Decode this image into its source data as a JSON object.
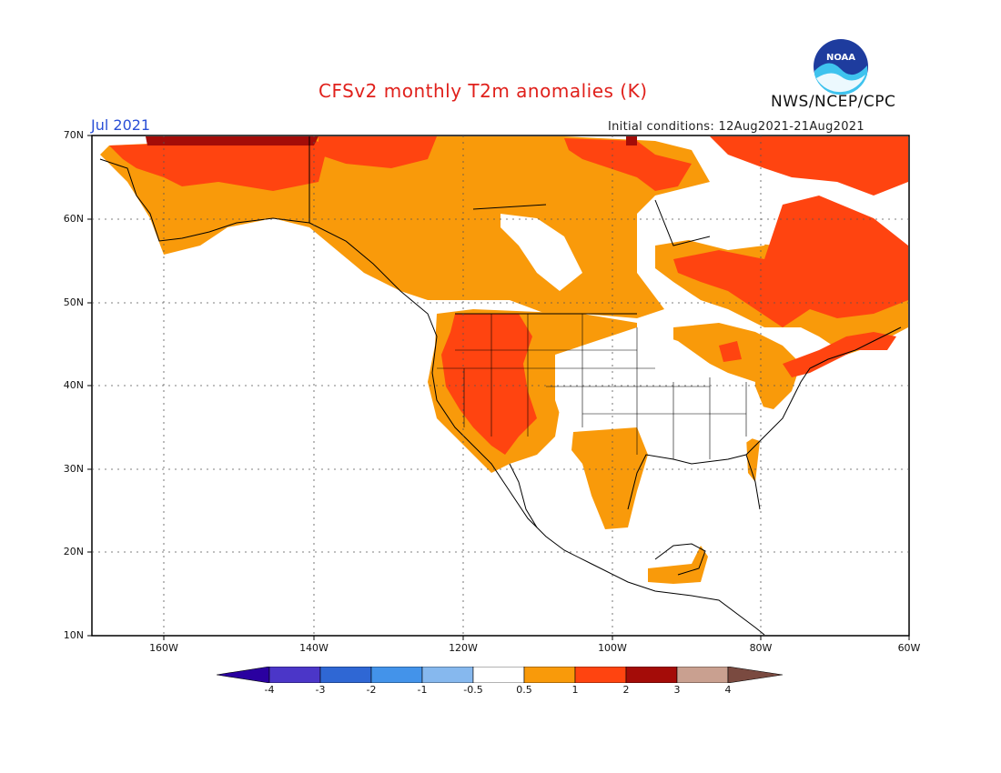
{
  "header": {
    "title": "CFSv2 monthly T2m anomalies (K)",
    "month": "Jul 2021",
    "initial_conditions": "Initial conditions: 12Aug2021-21Aug2021",
    "agency": "NWS/NCEP/CPC",
    "logo_text": "NOAA"
  },
  "axes": {
    "lat_labels": [
      "70N",
      "60N",
      "50N",
      "40N",
      "30N",
      "20N",
      "10N"
    ],
    "lon_labels": [
      "160W",
      "140W",
      "120W",
      "100W",
      "80W",
      "60W"
    ]
  },
  "colorbar": {
    "labels": [
      "-4",
      "-3",
      "-2",
      "-1",
      "-0.5",
      "0.5",
      "1",
      "2",
      "3",
      "4"
    ],
    "colors": [
      "#2a00a0",
      "#4b36c8",
      "#2f67d4",
      "#4393ea",
      "#86b8ee",
      "#ffffff",
      "#f99a0a",
      "#ff4410",
      "#a40c08",
      "#c9a090",
      "#7a4a40"
    ]
  },
  "anomaly_colors": {
    "level_0_5": "#f99a0a",
    "level_1": "#ff4410",
    "level_2": "#a40c08"
  }
}
